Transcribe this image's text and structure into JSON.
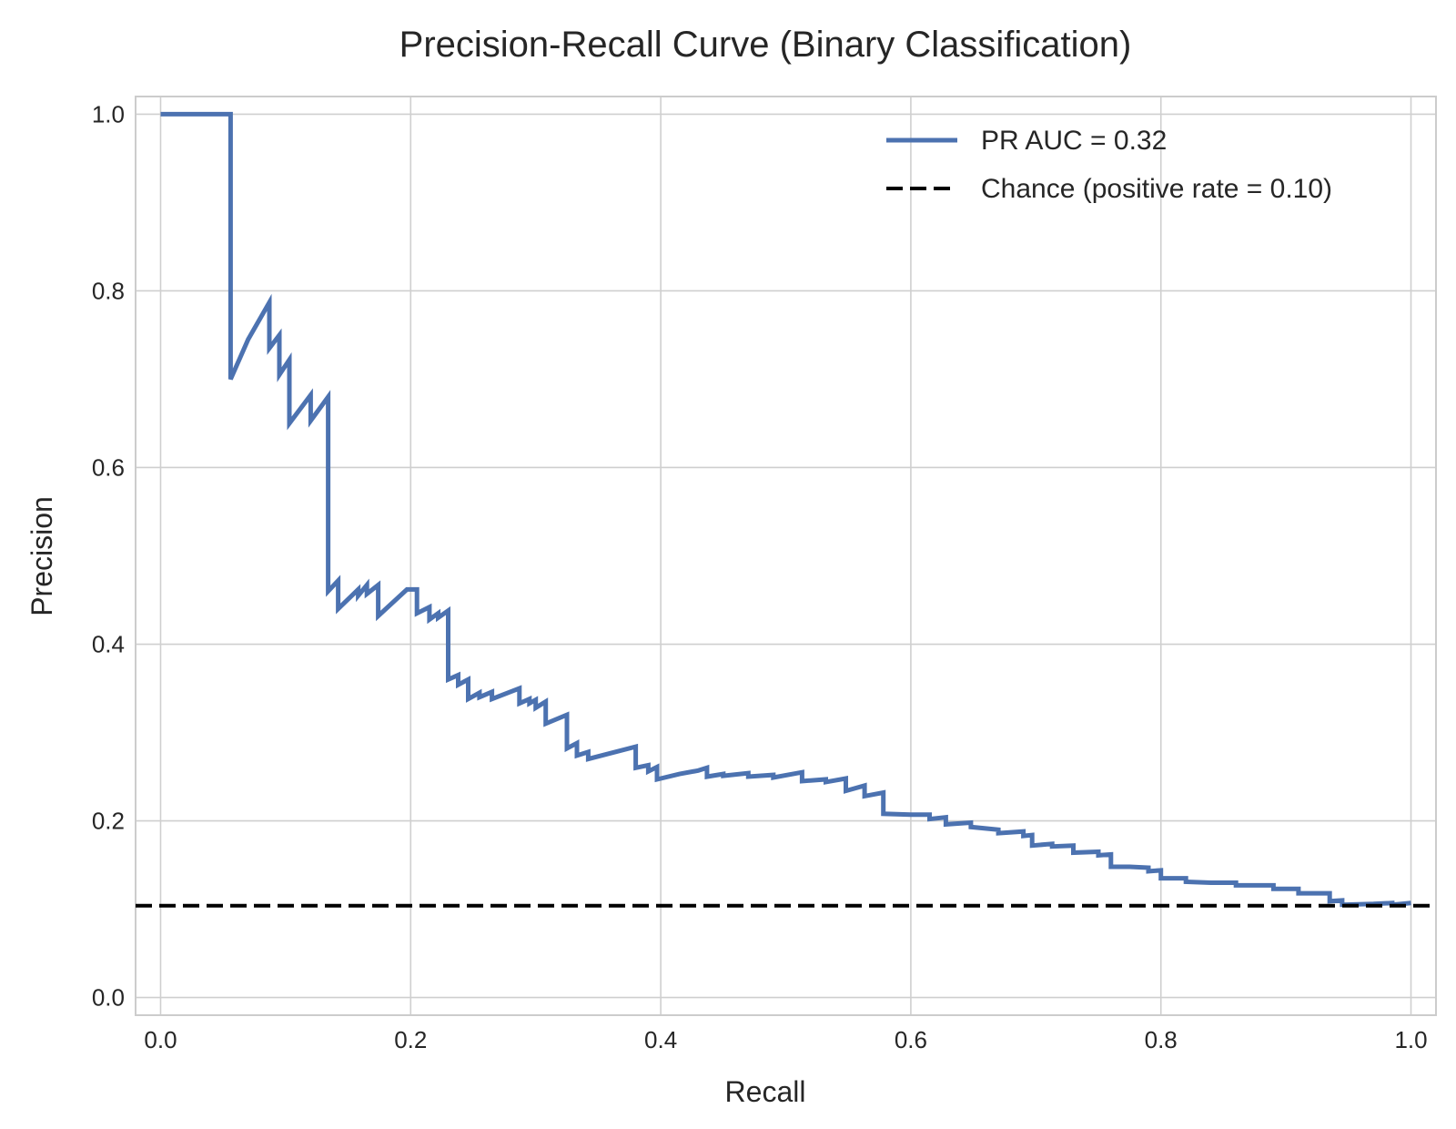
{
  "chart_data": {
    "type": "line",
    "title": "Precision-Recall Curve (Binary Classification)",
    "xlabel": "Recall",
    "ylabel": "Precision",
    "xlim": [
      -0.02,
      1.02
    ],
    "ylim": [
      -0.02,
      1.02
    ],
    "xticks": [
      0.0,
      0.2,
      0.4,
      0.6,
      0.8,
      1.0
    ],
    "xtick_labels": [
      "0.0",
      "0.2",
      "0.4",
      "0.6",
      "0.8",
      "1.0"
    ],
    "yticks": [
      0.0,
      0.2,
      0.4,
      0.6,
      0.8,
      1.0
    ],
    "ytick_labels": [
      "0.0",
      "0.2",
      "0.4",
      "0.6",
      "0.8",
      "1.0"
    ],
    "grid": true,
    "legend": {
      "position": "top-right"
    },
    "series": [
      {
        "name": "PR AUC = 0.32",
        "color": "#4c72b0",
        "style": "solid",
        "points": [
          [
            0.0,
            1.0
          ],
          [
            0.056,
            1.0
          ],
          [
            0.056,
            0.7
          ],
          [
            0.07,
            0.745
          ],
          [
            0.087,
            0.787
          ],
          [
            0.087,
            0.735
          ],
          [
            0.095,
            0.75
          ],
          [
            0.095,
            0.705
          ],
          [
            0.103,
            0.722
          ],
          [
            0.103,
            0.65
          ],
          [
            0.12,
            0.682
          ],
          [
            0.12,
            0.653
          ],
          [
            0.134,
            0.68
          ],
          [
            0.134,
            0.46
          ],
          [
            0.142,
            0.472
          ],
          [
            0.142,
            0.44
          ],
          [
            0.158,
            0.462
          ],
          [
            0.158,
            0.455
          ],
          [
            0.165,
            0.467
          ],
          [
            0.165,
            0.457
          ],
          [
            0.174,
            0.467
          ],
          [
            0.174,
            0.432
          ],
          [
            0.197,
            0.462
          ],
          [
            0.205,
            0.462
          ],
          [
            0.205,
            0.435
          ],
          [
            0.215,
            0.442
          ],
          [
            0.215,
            0.428
          ],
          [
            0.222,
            0.435
          ],
          [
            0.222,
            0.43
          ],
          [
            0.23,
            0.438
          ],
          [
            0.23,
            0.36
          ],
          [
            0.238,
            0.365
          ],
          [
            0.238,
            0.354
          ],
          [
            0.246,
            0.36
          ],
          [
            0.246,
            0.338
          ],
          [
            0.255,
            0.345
          ],
          [
            0.255,
            0.34
          ],
          [
            0.265,
            0.346
          ],
          [
            0.265,
            0.338
          ],
          [
            0.287,
            0.35
          ],
          [
            0.287,
            0.333
          ],
          [
            0.295,
            0.338
          ],
          [
            0.295,
            0.333
          ],
          [
            0.3,
            0.337
          ],
          [
            0.3,
            0.328
          ],
          [
            0.308,
            0.335
          ],
          [
            0.308,
            0.31
          ],
          [
            0.325,
            0.32
          ],
          [
            0.325,
            0.282
          ],
          [
            0.333,
            0.288
          ],
          [
            0.333,
            0.274
          ],
          [
            0.342,
            0.278
          ],
          [
            0.342,
            0.27
          ],
          [
            0.38,
            0.284
          ],
          [
            0.38,
            0.26
          ],
          [
            0.39,
            0.263
          ],
          [
            0.39,
            0.256
          ],
          [
            0.397,
            0.261
          ],
          [
            0.397,
            0.247
          ],
          [
            0.415,
            0.253
          ],
          [
            0.43,
            0.257
          ],
          [
            0.437,
            0.26
          ],
          [
            0.437,
            0.25
          ],
          [
            0.45,
            0.253
          ],
          [
            0.45,
            0.251
          ],
          [
            0.47,
            0.254
          ],
          [
            0.47,
            0.25
          ],
          [
            0.49,
            0.252
          ],
          [
            0.49,
            0.249
          ],
          [
            0.513,
            0.255
          ],
          [
            0.513,
            0.245
          ],
          [
            0.532,
            0.247
          ],
          [
            0.532,
            0.244
          ],
          [
            0.548,
            0.248
          ],
          [
            0.548,
            0.234
          ],
          [
            0.563,
            0.24
          ],
          [
            0.563,
            0.228
          ],
          [
            0.578,
            0.232
          ],
          [
            0.578,
            0.208
          ],
          [
            0.6,
            0.207
          ],
          [
            0.615,
            0.207
          ],
          [
            0.615,
            0.202
          ],
          [
            0.628,
            0.204
          ],
          [
            0.628,
            0.196
          ],
          [
            0.648,
            0.198
          ],
          [
            0.648,
            0.193
          ],
          [
            0.67,
            0.19
          ],
          [
            0.67,
            0.186
          ],
          [
            0.69,
            0.188
          ],
          [
            0.69,
            0.183
          ],
          [
            0.697,
            0.184
          ],
          [
            0.697,
            0.172
          ],
          [
            0.713,
            0.174
          ],
          [
            0.713,
            0.171
          ],
          [
            0.73,
            0.172
          ],
          [
            0.73,
            0.164
          ],
          [
            0.75,
            0.165
          ],
          [
            0.75,
            0.161
          ],
          [
            0.76,
            0.162
          ],
          [
            0.76,
            0.148
          ],
          [
            0.775,
            0.148
          ],
          [
            0.79,
            0.147
          ],
          [
            0.79,
            0.143
          ],
          [
            0.8,
            0.144
          ],
          [
            0.8,
            0.135
          ],
          [
            0.82,
            0.135
          ],
          [
            0.82,
            0.131
          ],
          [
            0.84,
            0.13
          ],
          [
            0.86,
            0.13
          ],
          [
            0.86,
            0.127
          ],
          [
            0.89,
            0.127
          ],
          [
            0.89,
            0.123
          ],
          [
            0.91,
            0.123
          ],
          [
            0.91,
            0.118
          ],
          [
            0.935,
            0.118
          ],
          [
            0.935,
            0.109
          ],
          [
            0.945,
            0.11
          ],
          [
            0.945,
            0.105
          ],
          [
            0.97,
            0.106
          ],
          [
            0.985,
            0.107
          ],
          [
            0.985,
            0.105
          ],
          [
            1.0,
            0.107
          ]
        ]
      },
      {
        "name": "Chance (positive rate = 0.10)",
        "color": "#000000",
        "style": "dashed",
        "points": [
          [
            -0.02,
            0.104
          ],
          [
            1.02,
            0.104
          ]
        ]
      }
    ]
  }
}
